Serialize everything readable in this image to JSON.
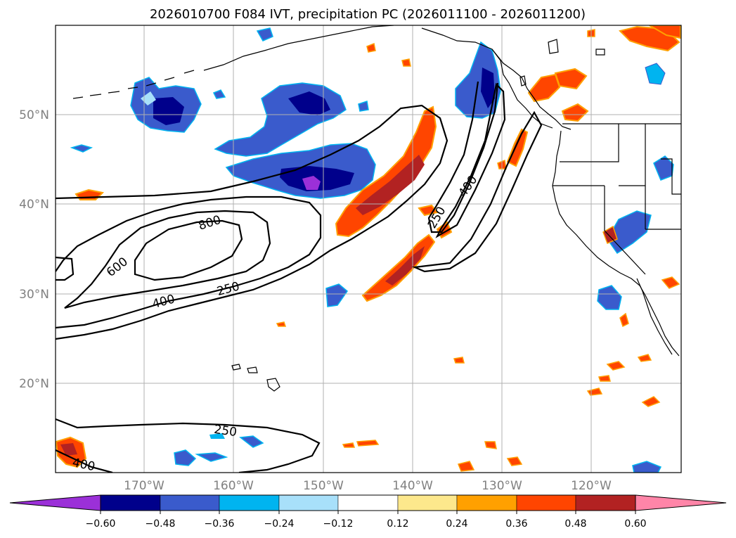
{
  "figure": {
    "title": "2026010700 F084 IVT, precipitation PC (2026011100 - 2026011200)"
  },
  "map": {
    "lon_range": [
      -180,
      -110
    ],
    "lat_range": [
      10,
      60
    ],
    "lat_labels": [
      {
        "value": 50,
        "text": "50°N"
      },
      {
        "value": 40,
        "text": "40°N"
      },
      {
        "value": 30,
        "text": "30°N"
      },
      {
        "value": 20,
        "text": "20°N"
      }
    ],
    "lon_labels": [
      {
        "value": -170,
        "text": "170°W"
      },
      {
        "value": -160,
        "text": "160°W"
      },
      {
        "value": -150,
        "text": "150°W"
      },
      {
        "value": -140,
        "text": "140°W"
      },
      {
        "value": -130,
        "text": "130°W"
      },
      {
        "value": -120,
        "text": "120°W"
      }
    ],
    "contour_labels": [
      "800",
      "600",
      "400",
      "250",
      "250",
      "400",
      "250",
      "400"
    ]
  },
  "colorbar": {
    "ticks": [
      "−0.60",
      "−0.48",
      "−0.36",
      "−0.24",
      "−0.12",
      "0.12",
      "0.24",
      "0.36",
      "0.48",
      "0.60"
    ],
    "colors": [
      "#9b30d8",
      "#00008b",
      "#3a5bcc",
      "#00b4f0",
      "#a8e0fa",
      "#ffffff",
      "#fde88c",
      "#ffa000",
      "#ff4500",
      "#b22222",
      "#ff85a8"
    ]
  }
}
